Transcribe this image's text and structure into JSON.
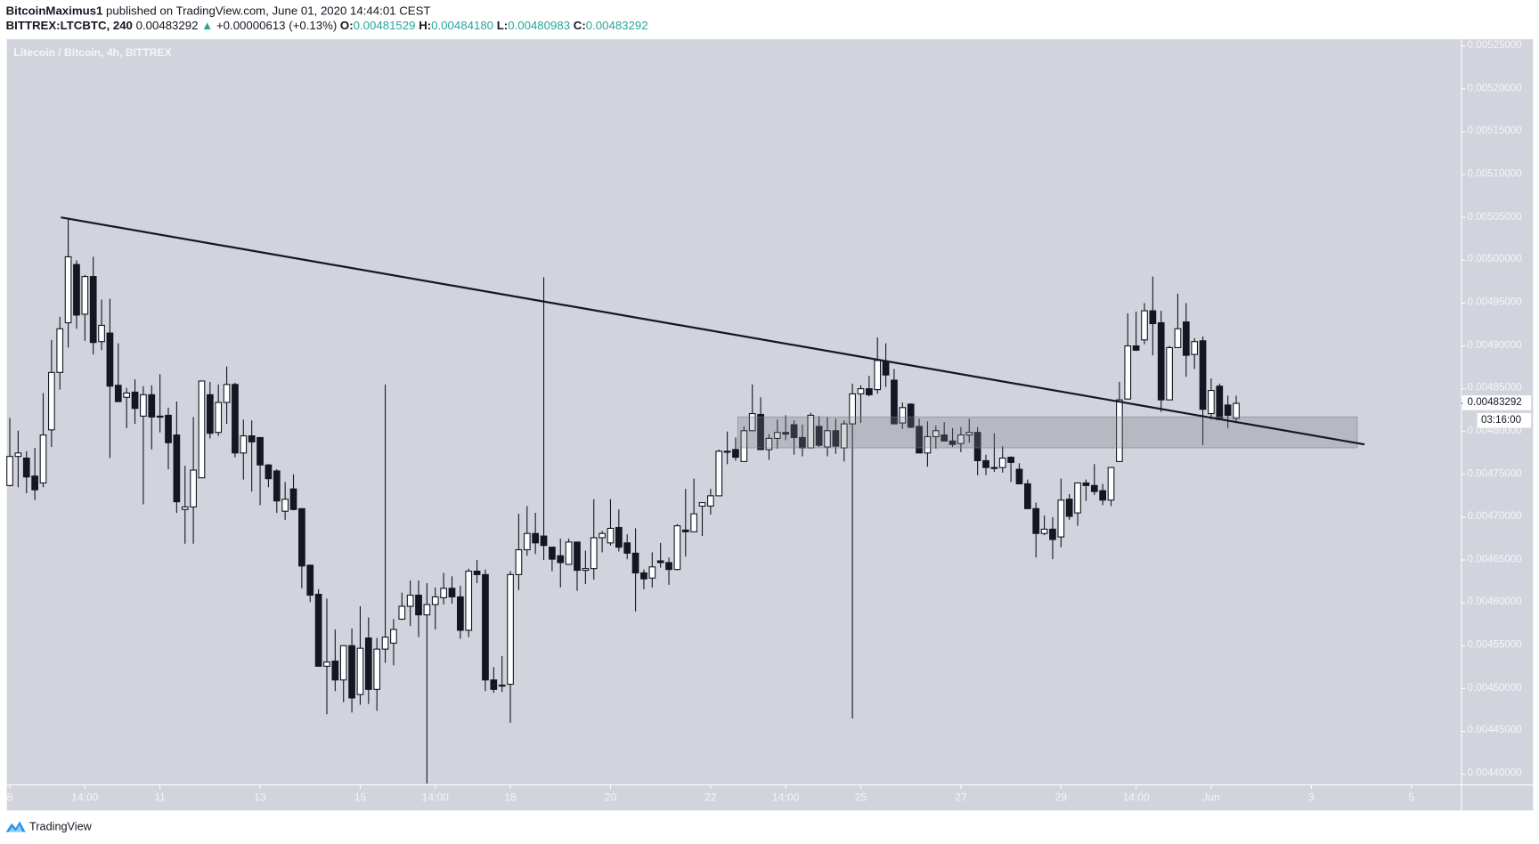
{
  "header": {
    "author": "BitcoinMaximus1",
    "published": " published on TradingView.com, June 01, 2020 14:44:01 CEST",
    "symbol": "BITTREX:LTCBTC, 240",
    "last": "0.00483292",
    "change": "+0.00000613 (+0.13%)",
    "o_label": "O:",
    "o_value": "0.00481529",
    "h_label": "H:",
    "h_value": "0.00484180",
    "l_label": "L:",
    "l_value": "0.00480983",
    "c_label": "C:",
    "c_value": "0.00483292",
    "up_icon": "triangle-up-icon"
  },
  "footer": {
    "brand": "TradingView",
    "logo_icon": "tradingview-logo-icon"
  },
  "colors": {
    "background": "#d1d4dc",
    "candle_dark": "#131722",
    "candle_light": "#ffffff",
    "positive": "#26a69a",
    "zone": "#787b86"
  },
  "chart_data": {
    "type": "candlestick",
    "title": "Litecoin / Bitcoin, 4h, BITTREX",
    "interval": "4h",
    "start_time": "2020-05-08 00:00",
    "ylim": [
      0.0044,
      0.00525
    ],
    "grid": false,
    "y_ticks": [
      "0.00525000",
      "0.00520000",
      "0.00515000",
      "0.00510000",
      "0.00505000",
      "0.00500000",
      "0.00495000",
      "0.00490000",
      "0.00485000",
      "0.00480000",
      "0.00475000",
      "0.00470000",
      "0.00465000",
      "0.00460000",
      "0.00455000",
      "0.00450000",
      "0.00445000",
      "0.00440000"
    ],
    "x_ticks": [
      {
        "label": "8",
        "time": "2020-05-08 00:00"
      },
      {
        "label": "14:00",
        "time": "2020-05-09 12:00"
      },
      {
        "label": "11",
        "time": "2020-05-11 00:00"
      },
      {
        "label": "13",
        "time": "2020-05-13 00:00"
      },
      {
        "label": "15",
        "time": "2020-05-15 00:00"
      },
      {
        "label": "14:00",
        "time": "2020-05-16 12:00"
      },
      {
        "label": "18",
        "time": "2020-05-18 00:00"
      },
      {
        "label": "20",
        "time": "2020-05-20 00:00"
      },
      {
        "label": "22",
        "time": "2020-05-22 00:00"
      },
      {
        "label": "14:00",
        "time": "2020-05-23 12:00"
      },
      {
        "label": "25",
        "time": "2020-05-25 00:00"
      },
      {
        "label": "27",
        "time": "2020-05-27 00:00"
      },
      {
        "label": "29",
        "time": "2020-05-29 00:00"
      },
      {
        "label": "14:00",
        "time": "2020-05-30 12:00"
      },
      {
        "label": "Jun",
        "time": "2020-06-01 00:00"
      },
      {
        "label": "3",
        "time": "2020-06-03 00:00"
      },
      {
        "label": "5",
        "time": "2020-06-05 00:00"
      }
    ],
    "current_price": "0.00483292",
    "countdown": "03:16:00",
    "trendline": {
      "start": {
        "time": "2020-05-09 00:30",
        "price": 0.00505
      },
      "end": {
        "time": "2020-06-04 01:30",
        "price": 0.004785
      }
    },
    "zone": {
      "start_time": "2020-05-22 13:00",
      "end_time": "2020-06-03 22:00",
      "top": 0.004817,
      "bottom": 0.004781
    },
    "ohlc": [
      [
        0.004737,
        0.004816,
        0.004736,
        0.004771
      ],
      [
        0.004771,
        0.004801,
        0.004735,
        0.004775
      ],
      [
        0.004769,
        0.004777,
        0.004728,
        0.004747
      ],
      [
        0.004748,
        0.004781,
        0.00472,
        0.004732
      ],
      [
        0.00474,
        0.004845,
        0.004735,
        0.004796
      ],
      [
        0.004802,
        0.004907,
        0.004782,
        0.004869
      ],
      [
        0.004869,
        0.004934,
        0.004849,
        0.00492
      ],
      [
        0.004927,
        0.005048,
        0.004898,
        0.005004
      ],
      [
        0.004995,
        0.005,
        0.00492,
        0.004936
      ],
      [
        0.004937,
        0.004983,
        0.004906,
        0.004981
      ],
      [
        0.004981,
        0.005004,
        0.00489,
        0.004904
      ],
      [
        0.004905,
        0.004954,
        0.004895,
        0.004924
      ],
      [
        0.004915,
        0.004955,
        0.004769,
        0.004853
      ],
      [
        0.004854,
        0.004903,
        0.004835,
        0.004835
      ],
      [
        0.00484,
        0.004851,
        0.004804,
        0.004845
      ],
      [
        0.004846,
        0.004861,
        0.004809,
        0.004827
      ],
      [
        0.004818,
        0.004853,
        0.004715,
        0.004843
      ],
      [
        0.004843,
        0.004854,
        0.004779,
        0.004817
      ],
      [
        0.004818,
        0.004867,
        0.004799,
        0.004818
      ],
      [
        0.004819,
        0.004828,
        0.004756,
        0.004787
      ],
      [
        0.004796,
        0.004835,
        0.004705,
        0.004718
      ],
      [
        0.004709,
        0.00476,
        0.004669,
        0.004712
      ],
      [
        0.004712,
        0.004817,
        0.004669,
        0.004755
      ],
      [
        0.004746,
        0.004859,
        0.004746,
        0.004859
      ],
      [
        0.004843,
        0.004858,
        0.004792,
        0.004798
      ],
      [
        0.004799,
        0.004855,
        0.004795,
        0.004834
      ],
      [
        0.004834,
        0.004876,
        0.004809,
        0.004855
      ],
      [
        0.004855,
        0.004857,
        0.00477,
        0.004775
      ],
      [
        0.004775,
        0.004814,
        0.004744,
        0.004795
      ],
      [
        0.004795,
        0.004813,
        0.00473,
        0.004788
      ],
      [
        0.004793,
        0.004793,
        0.004714,
        0.004761
      ],
      [
        0.004761,
        0.004762,
        0.004735,
        0.004745
      ],
      [
        0.004754,
        0.004756,
        0.004705,
        0.004719
      ],
      [
        0.004707,
        0.004741,
        0.004697,
        0.004721
      ],
      [
        0.004733,
        0.00475,
        0.004708,
        0.004709
      ],
      [
        0.00471,
        0.00471,
        0.004617,
        0.004643
      ],
      [
        0.004644,
        0.004644,
        0.004601,
        0.004609
      ],
      [
        0.00461,
        0.004616,
        0.004526,
        0.004526
      ],
      [
        0.004526,
        0.004605,
        0.00447,
        0.004531
      ],
      [
        0.004532,
        0.004569,
        0.004497,
        0.00451
      ],
      [
        0.00451,
        0.00455,
        0.004484,
        0.00455
      ],
      [
        0.00455,
        0.00457,
        0.004472,
        0.004489
      ],
      [
        0.004493,
        0.004596,
        0.004481,
        0.004547
      ],
      [
        0.004559,
        0.004583,
        0.004482,
        0.004499
      ],
      [
        0.004499,
        0.004559,
        0.004474,
        0.004546
      ],
      [
        0.004546,
        0.004855,
        0.00453,
        0.00456
      ],
      [
        0.004553,
        0.004581,
        0.004527,
        0.004569
      ],
      [
        0.004581,
        0.004612,
        0.00458,
        0.004596
      ],
      [
        0.004596,
        0.004626,
        0.004573,
        0.004609
      ],
      [
        0.004609,
        0.004626,
        0.00456,
        0.004586
      ],
      [
        0.004586,
        0.004623,
        0.004389,
        0.004598
      ],
      [
        0.004598,
        0.004618,
        0.004569,
        0.004607
      ],
      [
        0.004606,
        0.004635,
        0.004598,
        0.004617
      ],
      [
        0.004617,
        0.004631,
        0.004599,
        0.004607
      ],
      [
        0.004607,
        0.00462,
        0.004558,
        0.004568
      ],
      [
        0.004568,
        0.00464,
        0.00456,
        0.004637
      ],
      [
        0.004637,
        0.00465,
        0.004623,
        0.004633
      ],
      [
        0.004633,
        0.004639,
        0.004497,
        0.00451
      ],
      [
        0.00451,
        0.004525,
        0.004495,
        0.004499
      ],
      [
        0.004504,
        0.004538,
        0.004496,
        0.004504
      ],
      [
        0.004505,
        0.004637,
        0.00446,
        0.004633
      ],
      [
        0.004633,
        0.004704,
        0.004615,
        0.004662
      ],
      [
        0.004662,
        0.004713,
        0.004655,
        0.004681
      ],
      [
        0.004681,
        0.004705,
        0.004657,
        0.00467
      ],
      [
        0.004678,
        0.00498,
        0.00465,
        0.004667
      ],
      [
        0.004665,
        0.004665,
        0.004637,
        0.004651
      ],
      [
        0.004655,
        0.004675,
        0.004618,
        0.004647
      ],
      [
        0.004645,
        0.004675,
        0.004645,
        0.004671
      ],
      [
        0.004671,
        0.004671,
        0.004614,
        0.004638
      ],
      [
        0.004638,
        0.004661,
        0.004622,
        0.00464
      ],
      [
        0.00464,
        0.004721,
        0.004627,
        0.004676
      ],
      [
        0.004676,
        0.004684,
        0.004659,
        0.004681
      ],
      [
        0.00467,
        0.004721,
        0.004667,
        0.004687
      ],
      [
        0.004688,
        0.004709,
        0.00466,
        0.004665
      ],
      [
        0.00467,
        0.00468,
        0.004651,
        0.004658
      ],
      [
        0.004658,
        0.004687,
        0.00459,
        0.004635
      ],
      [
        0.004635,
        0.004639,
        0.004616,
        0.004628
      ],
      [
        0.004629,
        0.004659,
        0.004618,
        0.004642
      ],
      [
        0.004649,
        0.00467,
        0.004641,
        0.004647
      ],
      [
        0.004647,
        0.004653,
        0.004621,
        0.004639
      ],
      [
        0.004639,
        0.004692,
        0.004638,
        0.00469
      ],
      [
        0.004685,
        0.004733,
        0.004654,
        0.004683
      ],
      [
        0.004683,
        0.004745,
        0.004683,
        0.004704
      ],
      [
        0.004713,
        0.004717,
        0.004678,
        0.004717
      ],
      [
        0.004713,
        0.004733,
        0.004703,
        0.004725
      ],
      [
        0.004725,
        0.004779,
        0.004725,
        0.004777
      ],
      [
        0.004777,
        0.0048,
        0.004762,
        0.004777
      ],
      [
        0.004779,
        0.004793,
        0.004766,
        0.00477
      ],
      [
        0.004765,
        0.004806,
        0.004765,
        0.004801
      ],
      [
        0.004801,
        0.004855,
        0.004801,
        0.004821
      ],
      [
        0.00482,
        0.00484,
        0.004779,
        0.004779
      ],
      [
        0.004779,
        0.004797,
        0.004767,
        0.004792
      ],
      [
        0.004792,
        0.004814,
        0.00478,
        0.004799
      ],
      [
        0.004799,
        0.004819,
        0.00479,
        0.004797
      ],
      [
        0.004808,
        0.004813,
        0.004773,
        0.004793
      ],
      [
        0.004793,
        0.004808,
        0.004771,
        0.004781
      ],
      [
        0.004781,
        0.004822,
        0.004781,
        0.004819
      ],
      [
        0.004806,
        0.004818,
        0.004782,
        0.004784
      ],
      [
        0.004782,
        0.004817,
        0.004771,
        0.004801
      ],
      [
        0.004801,
        0.004815,
        0.004774,
        0.004783
      ],
      [
        0.004781,
        0.004813,
        0.004765,
        0.004809
      ],
      [
        0.004809,
        0.004856,
        0.004465,
        0.004844
      ],
      [
        0.004844,
        0.004854,
        0.00481,
        0.00485
      ],
      [
        0.00485,
        0.004865,
        0.004841,
        0.004843
      ],
      [
        0.004849,
        0.00491,
        0.004844,
        0.004883
      ],
      [
        0.004882,
        0.004903,
        0.004852,
        0.004866
      ],
      [
        0.00486,
        0.004873,
        0.004809,
        0.004809
      ],
      [
        0.00481,
        0.004834,
        0.004803,
        0.004828
      ],
      [
        0.004832,
        0.004833,
        0.004804,
        0.004805
      ],
      [
        0.004806,
        0.004815,
        0.004775,
        0.004775
      ],
      [
        0.004775,
        0.004812,
        0.004759,
        0.004794
      ],
      [
        0.004794,
        0.004807,
        0.00478,
        0.004801
      ],
      [
        0.004796,
        0.004811,
        0.004789,
        0.004789
      ],
      [
        0.004789,
        0.004804,
        0.004782,
        0.004785
      ],
      [
        0.004786,
        0.004805,
        0.004776,
        0.004796
      ],
      [
        0.004796,
        0.004815,
        0.004787,
        0.004799
      ],
      [
        0.004799,
        0.004805,
        0.004749,
        0.004766
      ],
      [
        0.004766,
        0.004773,
        0.004749,
        0.004758
      ],
      [
        0.004758,
        0.004798,
        0.004753,
        0.004758
      ],
      [
        0.004758,
        0.004783,
        0.004752,
        0.004769
      ],
      [
        0.00477,
        0.004771,
        0.004741,
        0.004764
      ],
      [
        0.004756,
        0.004763,
        0.004739,
        0.004739
      ],
      [
        0.004739,
        0.004744,
        0.00471,
        0.00471
      ],
      [
        0.00471,
        0.004717,
        0.004653,
        0.004681
      ],
      [
        0.004681,
        0.004702,
        0.004679,
        0.004686
      ],
      [
        0.004686,
        0.0047,
        0.004651,
        0.004674
      ],
      [
        0.004677,
        0.004745,
        0.004665,
        0.00472
      ],
      [
        0.004721,
        0.004727,
        0.004697,
        0.004701
      ],
      [
        0.004705,
        0.00474,
        0.00469,
        0.00474
      ],
      [
        0.00474,
        0.004744,
        0.004719,
        0.004737
      ],
      [
        0.004737,
        0.004762,
        0.004726,
        0.00473
      ],
      [
        0.004731,
        0.004739,
        0.004714,
        0.00472
      ],
      [
        0.00472,
        0.004758,
        0.004713,
        0.004758
      ],
      [
        0.004765,
        0.004858,
        0.004765,
        0.004837
      ],
      [
        0.004838,
        0.004938,
        0.004838,
        0.0049
      ],
      [
        0.0049,
        0.00494,
        0.004894,
        0.004895
      ],
      [
        0.004907,
        0.00495,
        0.004902,
        0.004941
      ],
      [
        0.004941,
        0.004981,
        0.004889,
        0.004926
      ],
      [
        0.004927,
        0.004941,
        0.004823,
        0.004837
      ],
      [
        0.004837,
        0.0049,
        0.004837,
        0.004898
      ],
      [
        0.004898,
        0.004961,
        0.004898,
        0.00492
      ],
      [
        0.004928,
        0.00495,
        0.004864,
        0.004889
      ],
      [
        0.00489,
        0.004909,
        0.004873,
        0.004905
      ],
      [
        0.004906,
        0.004911,
        0.004784,
        0.004826
      ],
      [
        0.004821,
        0.004862,
        0.004814,
        0.004848
      ],
      [
        0.004853,
        0.004856,
        0.004814,
        0.004814
      ],
      [
        0.004831,
        0.004842,
        0.004804,
        0.004819
      ],
      [
        0.00481529,
        0.0048418,
        0.00480983,
        0.00483292
      ]
    ]
  }
}
